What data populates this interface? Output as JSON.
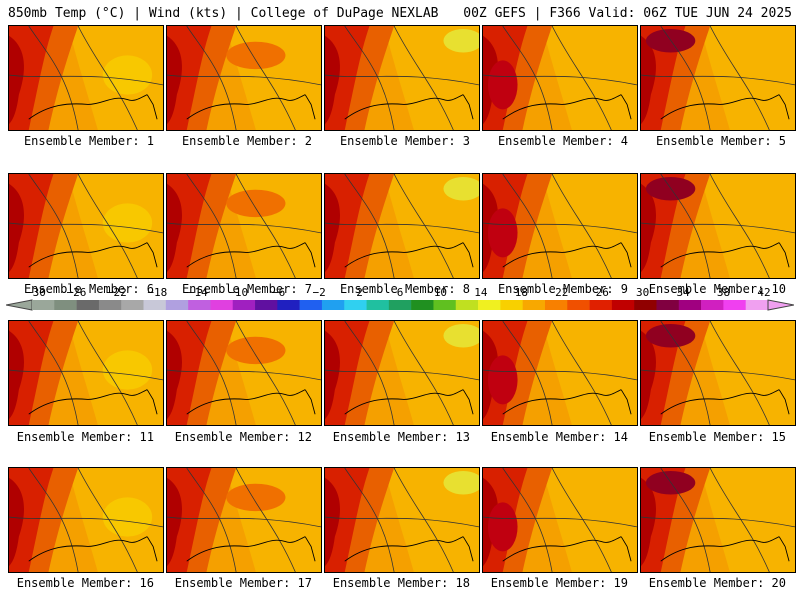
{
  "header": {
    "left": "850mb Temp (°C) | Wind (kts) | College of DuPage NEXLAB",
    "right": "00Z GEFS | F366 Valid: 06Z TUE JUN 24 2025"
  },
  "panels": [
    {
      "label": "Ensemble Member: 1"
    },
    {
      "label": "Ensemble Member: 2"
    },
    {
      "label": "Ensemble Member: 3"
    },
    {
      "label": "Ensemble Member: 4"
    },
    {
      "label": "Ensemble Member: 5"
    },
    {
      "label": "Ensemble Member: 6"
    },
    {
      "label": "Ensemble Member: 7"
    },
    {
      "label": "Ensemble Member: 8"
    },
    {
      "label": "Ensemble Member: 9"
    },
    {
      "label": "Ensemble Member: 10"
    },
    {
      "label": "Ensemble Member: 11"
    },
    {
      "label": "Ensemble Member: 12"
    },
    {
      "label": "Ensemble Member: 13"
    },
    {
      "label": "Ensemble Member: 14"
    },
    {
      "label": "Ensemble Member: 15"
    },
    {
      "label": "Ensemble Member: 16"
    },
    {
      "label": "Ensemble Member: 17"
    },
    {
      "label": "Ensemble Member: 18"
    },
    {
      "label": "Ensemble Member: 19"
    },
    {
      "label": "Ensemble Member: 20"
    }
  ],
  "colorbar": {
    "labels": [
      "−30",
      "−26",
      "−22",
      "−18",
      "−14",
      "−10",
      "−6",
      "−2",
      "2",
      "6",
      "10",
      "14",
      "18",
      "22",
      "26",
      "30",
      "34",
      "38",
      "42"
    ],
    "colors": [
      "#9aa79a",
      "#7f8f7f",
      "#6a6a6a",
      "#8a8a8a",
      "#a8a8a8",
      "#c8c8d8",
      "#b0a0e0",
      "#c060e0",
      "#e040e0",
      "#a020c0",
      "#6010a0",
      "#2020c0",
      "#2060f0",
      "#20a0f0",
      "#30d0f0",
      "#20c0a0",
      "#20a060",
      "#209020",
      "#60c020",
      "#c0e020",
      "#f0f020",
      "#f8d000",
      "#f8a800",
      "#f88000",
      "#f05000",
      "#e02000",
      "#c00000",
      "#900000",
      "#800040",
      "#a00080",
      "#d020c0",
      "#f040f0",
      "#f0a0f0"
    ]
  }
}
